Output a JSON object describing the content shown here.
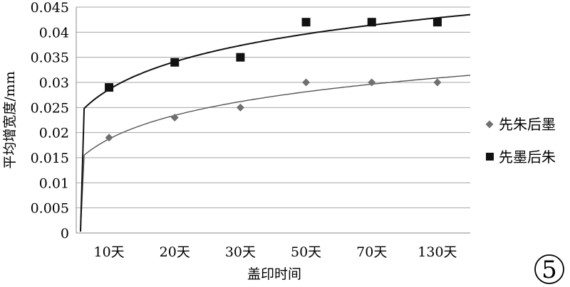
{
  "chart_data": {
    "type": "scatter",
    "title": "",
    "xlabel": "盖印时间",
    "ylabel": "平均增宽度/mm",
    "categories": [
      "10天",
      "20天",
      "30天",
      "50天",
      "70天",
      "130天"
    ],
    "y_ticks": [
      "0",
      "0.005",
      "0.01",
      "0.015",
      "0.02",
      "0.025",
      "0.03",
      "0.035",
      "0.04",
      "0.045"
    ],
    "ylim": [
      0,
      0.045
    ],
    "grid": "horizontal",
    "legend_position": "right",
    "series": [
      {
        "name": "先朱后墨",
        "marker": "diamond",
        "color": "#6f6f6f",
        "trend_color": "#555555",
        "values": [
          0.019,
          0.023,
          0.025,
          0.03,
          0.03,
          0.03
        ]
      },
      {
        "name": "先墨后朱",
        "marker": "square",
        "color": "#111111",
        "trend_color": "#111111",
        "values": [
          0.029,
          0.034,
          0.035,
          0.042,
          0.042,
          0.042
        ]
      }
    ],
    "panel_label": "5"
  }
}
